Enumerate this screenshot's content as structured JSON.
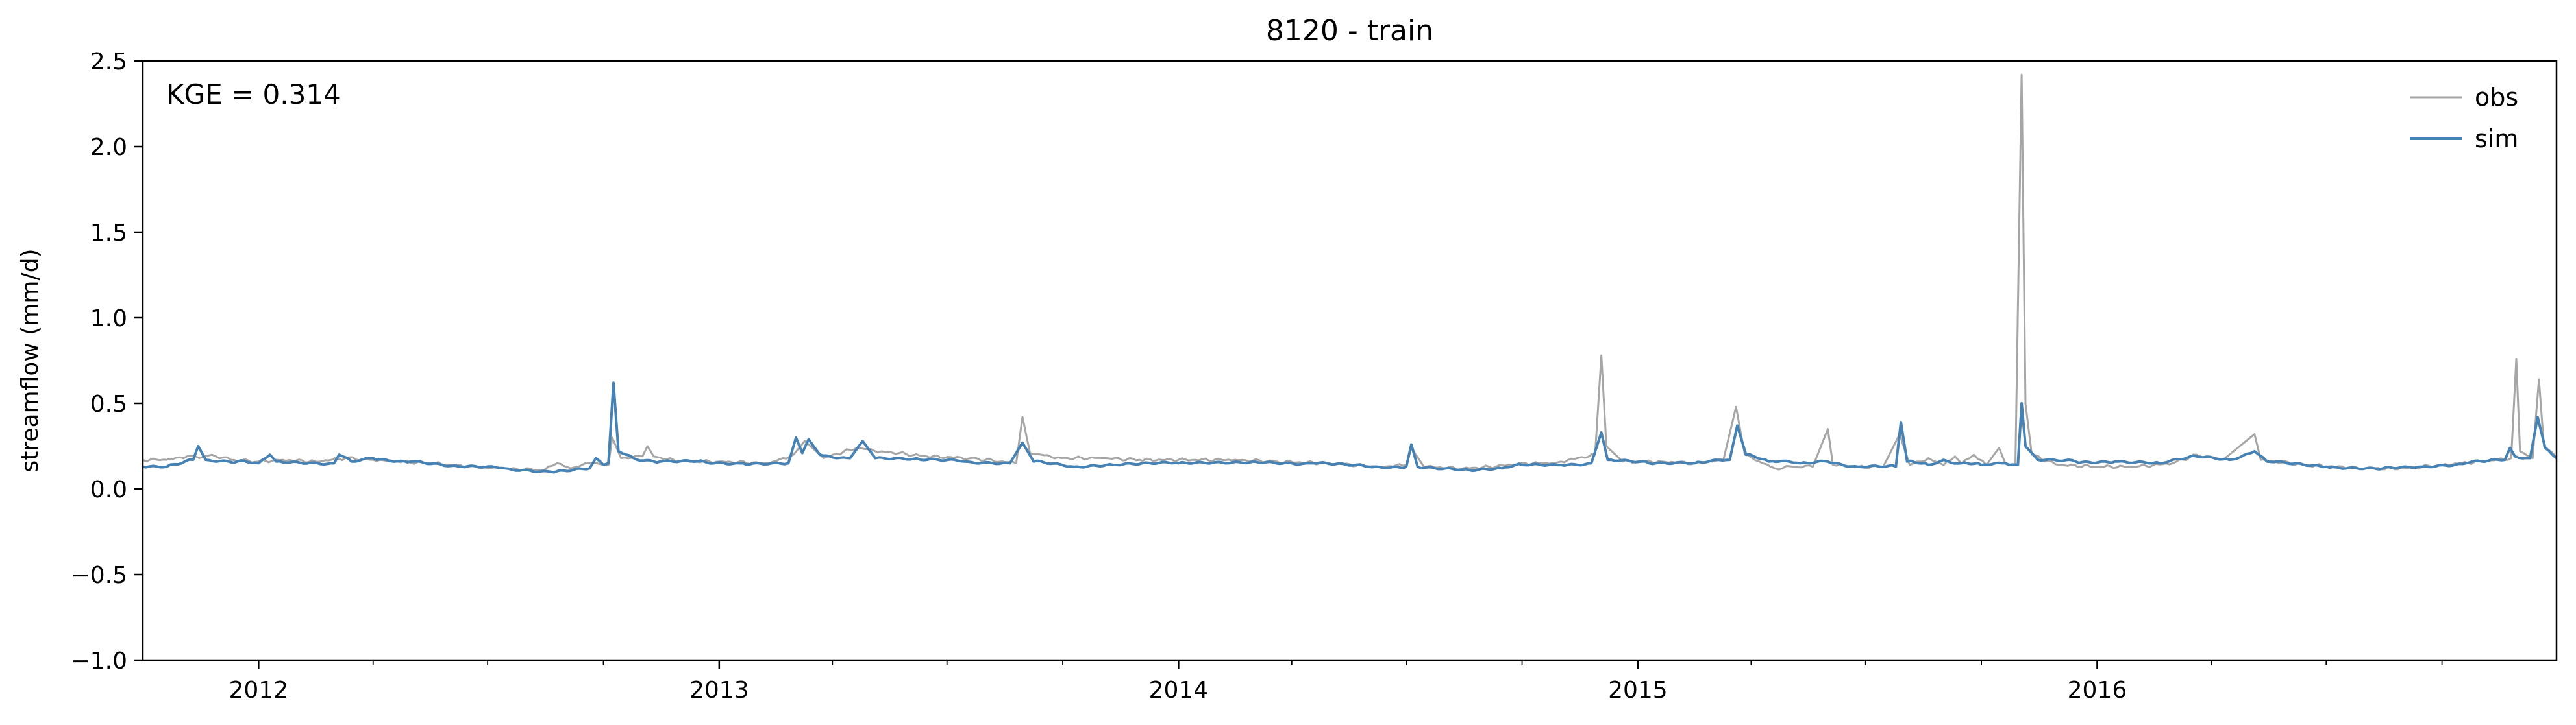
{
  "chart_data": {
    "type": "line",
    "title": "8120 - train",
    "ylabel": "streamflow (mm/d)",
    "xlabel": "",
    "xlim": [
      "2011-10-01",
      "2016-12-31"
    ],
    "ylim": [
      -1.0,
      2.5
    ],
    "yticks": [
      -1.0,
      -0.5,
      0.0,
      0.5,
      1.0,
      1.5,
      2.0,
      2.5
    ],
    "ytick_labels": [
      "−1.0",
      "−0.5",
      "0.0",
      "0.5",
      "1.0",
      "1.5",
      "2.0",
      "2.5"
    ],
    "xticks": [
      "2012-01-01",
      "2013-01-01",
      "2014-01-01",
      "2015-01-01",
      "2016-01-01"
    ],
    "xtick_labels": [
      "2012",
      "2013",
      "2014",
      "2015",
      "2016"
    ],
    "annotation": "KGE = 0.314",
    "grid": false,
    "legend": "top-right",
    "series": [
      {
        "name": "obs",
        "color": "#a6a6a6",
        "points": [
          [
            "2011-10-01",
            0.17
          ],
          [
            "2011-10-20",
            0.17
          ],
          [
            "2011-11-05",
            0.19
          ],
          [
            "2011-11-15",
            0.18
          ],
          [
            "2011-11-25",
            0.2
          ],
          [
            "2011-12-10",
            0.17
          ],
          [
            "2012-01-01",
            0.16
          ],
          [
            "2012-01-20",
            0.17
          ],
          [
            "2012-02-15",
            0.16
          ],
          [
            "2012-03-10",
            0.18
          ],
          [
            "2012-04-01",
            0.17
          ],
          [
            "2012-04-20",
            0.16
          ],
          [
            "2012-05-20",
            0.15
          ],
          [
            "2012-06-15",
            0.13
          ],
          [
            "2012-07-10",
            0.12
          ],
          [
            "2012-08-15",
            0.11
          ],
          [
            "2012-08-25",
            0.15
          ],
          [
            "2012-09-05",
            0.12
          ],
          [
            "2012-09-20",
            0.15
          ],
          [
            "2012-10-05",
            0.14
          ],
          [
            "2012-10-08",
            0.3
          ],
          [
            "2012-10-15",
            0.18
          ],
          [
            "2012-11-01",
            0.19
          ],
          [
            "2012-11-05",
            0.25
          ],
          [
            "2012-11-10",
            0.19
          ],
          [
            "2012-12-01",
            0.16
          ],
          [
            "2013-01-01",
            0.16
          ],
          [
            "2013-02-10",
            0.15
          ],
          [
            "2013-03-01",
            0.2
          ],
          [
            "2013-03-10",
            0.28
          ],
          [
            "2013-03-25",
            0.18
          ],
          [
            "2013-04-20",
            0.24
          ],
          [
            "2013-05-10",
            0.22
          ],
          [
            "2013-06-15",
            0.19
          ],
          [
            "2013-07-20",
            0.18
          ],
          [
            "2013-08-25",
            0.15
          ],
          [
            "2013-08-30",
            0.42
          ],
          [
            "2013-09-05",
            0.21
          ],
          [
            "2013-09-30",
            0.18
          ],
          [
            "2013-11-01",
            0.18
          ],
          [
            "2013-12-01",
            0.17
          ],
          [
            "2014-01-01",
            0.17
          ],
          [
            "2014-02-15",
            0.17
          ],
          [
            "2014-03-20",
            0.16
          ],
          [
            "2014-05-01",
            0.15
          ],
          [
            "2014-06-10",
            0.13
          ],
          [
            "2014-07-01",
            0.14
          ],
          [
            "2014-07-05",
            0.24
          ],
          [
            "2014-07-15",
            0.13
          ],
          [
            "2014-08-15",
            0.12
          ],
          [
            "2014-09-10",
            0.13
          ],
          [
            "2014-10-01",
            0.15
          ],
          [
            "2014-10-25",
            0.15
          ],
          [
            "2014-11-01",
            0.16
          ],
          [
            "2014-11-28",
            0.2
          ],
          [
            "2014-12-03",
            0.78
          ],
          [
            "2014-12-07",
            0.25
          ],
          [
            "2014-12-20",
            0.16
          ],
          [
            "2015-01-20",
            0.16
          ],
          [
            "2015-02-15",
            0.15
          ],
          [
            "2015-03-10",
            0.17
          ],
          [
            "2015-03-20",
            0.48
          ],
          [
            "2015-03-27",
            0.2
          ],
          [
            "2015-04-10",
            0.15
          ],
          [
            "2015-04-20",
            0.12
          ],
          [
            "2015-05-05",
            0.13
          ],
          [
            "2015-05-20",
            0.13
          ],
          [
            "2015-06-01",
            0.35
          ],
          [
            "2015-06-05",
            0.14
          ],
          [
            "2015-06-25",
            0.13
          ],
          [
            "2015-07-15",
            0.13
          ],
          [
            "2015-07-28",
            0.32
          ],
          [
            "2015-08-05",
            0.14
          ],
          [
            "2015-08-20",
            0.18
          ],
          [
            "2015-09-01",
            0.14
          ],
          [
            "2015-09-10",
            0.19
          ],
          [
            "2015-09-15",
            0.15
          ],
          [
            "2015-09-25",
            0.2
          ],
          [
            "2015-10-05",
            0.14
          ],
          [
            "2015-10-15",
            0.24
          ],
          [
            "2015-10-20",
            0.15
          ],
          [
            "2015-10-28",
            0.14
          ],
          [
            "2015-11-02",
            2.42
          ],
          [
            "2015-11-05",
            0.5
          ],
          [
            "2015-11-10",
            0.2
          ],
          [
            "2015-12-01",
            0.14
          ],
          [
            "2016-01-01",
            0.13
          ],
          [
            "2016-02-01",
            0.13
          ],
          [
            "2016-03-01",
            0.15
          ],
          [
            "2016-03-20",
            0.2
          ],
          [
            "2016-04-10",
            0.17
          ],
          [
            "2016-05-05",
            0.32
          ],
          [
            "2016-05-10",
            0.17
          ],
          [
            "2016-06-15",
            0.14
          ],
          [
            "2016-08-01",
            0.12
          ],
          [
            "2016-09-01",
            0.12
          ],
          [
            "2016-10-01",
            0.14
          ],
          [
            "2016-11-01",
            0.16
          ],
          [
            "2016-11-25",
            0.18
          ],
          [
            "2016-11-29",
            0.76
          ],
          [
            "2016-12-02",
            0.22
          ],
          [
            "2016-12-12",
            0.18
          ],
          [
            "2016-12-17",
            0.64
          ],
          [
            "2016-12-21",
            0.25
          ],
          [
            "2016-12-31",
            0.18
          ]
        ]
      },
      {
        "name": "sim",
        "color": "#4682b4",
        "points": [
          [
            "2011-10-01",
            0.13
          ],
          [
            "2011-10-20",
            0.13
          ],
          [
            "2011-11-01",
            0.15
          ],
          [
            "2011-11-10",
            0.17
          ],
          [
            "2011-11-14",
            0.25
          ],
          [
            "2011-11-20",
            0.17
          ],
          [
            "2011-12-15",
            0.16
          ],
          [
            "2012-01-01",
            0.15
          ],
          [
            "2012-01-10",
            0.2
          ],
          [
            "2012-01-15",
            0.16
          ],
          [
            "2012-03-01",
            0.15
          ],
          [
            "2012-03-05",
            0.2
          ],
          [
            "2012-03-15",
            0.16
          ],
          [
            "2012-04-01",
            0.18
          ],
          [
            "2012-05-01",
            0.16
          ],
          [
            "2012-06-10",
            0.13
          ],
          [
            "2012-07-15",
            0.12
          ],
          [
            "2012-08-20",
            0.1
          ],
          [
            "2012-09-20",
            0.12
          ],
          [
            "2012-09-25",
            0.18
          ],
          [
            "2012-10-01",
            0.14
          ],
          [
            "2012-10-05",
            0.15
          ],
          [
            "2012-10-09",
            0.62
          ],
          [
            "2012-10-13",
            0.22
          ],
          [
            "2012-10-25",
            0.18
          ],
          [
            "2012-11-15",
            0.16
          ],
          [
            "2012-12-20",
            0.16
          ],
          [
            "2013-01-20",
            0.15
          ],
          [
            "2013-02-25",
            0.15
          ],
          [
            "2013-03-03",
            0.3
          ],
          [
            "2013-03-08",
            0.21
          ],
          [
            "2013-03-13",
            0.29
          ],
          [
            "2013-03-22",
            0.2
          ],
          [
            "2013-04-15",
            0.18
          ],
          [
            "2013-04-25",
            0.28
          ],
          [
            "2013-05-05",
            0.18
          ],
          [
            "2013-06-10",
            0.17
          ],
          [
            "2013-07-15",
            0.16
          ],
          [
            "2013-08-20",
            0.15
          ],
          [
            "2013-08-30",
            0.27
          ],
          [
            "2013-09-08",
            0.16
          ],
          [
            "2013-10-10",
            0.13
          ],
          [
            "2013-11-10",
            0.14
          ],
          [
            "2014-01-01",
            0.15
          ],
          [
            "2014-03-01",
            0.16
          ],
          [
            "2014-04-15",
            0.15
          ],
          [
            "2014-06-01",
            0.13
          ],
          [
            "2014-07-01",
            0.13
          ],
          [
            "2014-07-05",
            0.26
          ],
          [
            "2014-07-10",
            0.13
          ],
          [
            "2014-08-20",
            0.11
          ],
          [
            "2014-09-15",
            0.12
          ],
          [
            "2014-10-01",
            0.14
          ],
          [
            "2014-11-01",
            0.14
          ],
          [
            "2014-11-25",
            0.15
          ],
          [
            "2014-12-03",
            0.33
          ],
          [
            "2014-12-08",
            0.17
          ],
          [
            "2015-01-10",
            0.15
          ],
          [
            "2015-02-15",
            0.15
          ],
          [
            "2015-03-15",
            0.17
          ],
          [
            "2015-03-21",
            0.37
          ],
          [
            "2015-03-28",
            0.2
          ],
          [
            "2015-04-15",
            0.16
          ],
          [
            "2015-05-10",
            0.15
          ],
          [
            "2015-06-01",
            0.16
          ],
          [
            "2015-06-25",
            0.13
          ],
          [
            "2015-07-25",
            0.13
          ],
          [
            "2015-07-29",
            0.39
          ],
          [
            "2015-08-03",
            0.16
          ],
          [
            "2015-08-20",
            0.14
          ],
          [
            "2015-09-01",
            0.17
          ],
          [
            "2015-09-15",
            0.15
          ],
          [
            "2015-10-01",
            0.14
          ],
          [
            "2015-10-20",
            0.15
          ],
          [
            "2015-10-30",
            0.14
          ],
          [
            "2015-11-02",
            0.5
          ],
          [
            "2015-11-05",
            0.25
          ],
          [
            "2015-11-15",
            0.17
          ],
          [
            "2015-12-15",
            0.16
          ],
          [
            "2016-01-15",
            0.16
          ],
          [
            "2016-02-20",
            0.15
          ],
          [
            "2016-03-20",
            0.19
          ],
          [
            "2016-04-15",
            0.17
          ],
          [
            "2016-05-05",
            0.22
          ],
          [
            "2016-05-15",
            0.16
          ],
          [
            "2016-07-01",
            0.13
          ],
          [
            "2016-08-15",
            0.12
          ],
          [
            "2016-09-15",
            0.13
          ],
          [
            "2016-10-20",
            0.15
          ],
          [
            "2016-11-20",
            0.17
          ],
          [
            "2016-11-24",
            0.24
          ],
          [
            "2016-11-28",
            0.19
          ],
          [
            "2016-12-10",
            0.18
          ],
          [
            "2016-12-16",
            0.42
          ],
          [
            "2016-12-22",
            0.24
          ],
          [
            "2016-12-31",
            0.18
          ]
        ]
      }
    ]
  }
}
